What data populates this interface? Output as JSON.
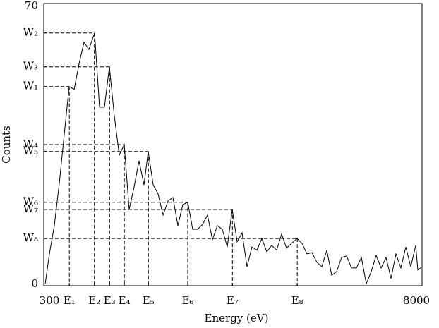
{
  "chart_data": {
    "type": "line",
    "xlabel": "Energy (eV)",
    "ylabel": "Counts",
    "xlim": [
      300,
      8000
    ],
    "ylim": [
      0,
      70
    ],
    "xticks": [
      300,
      {
        "value": 820,
        "label": "E₁"
      },
      {
        "value": 1330,
        "label": "E₂"
      },
      {
        "value": 1640,
        "label": "E₃"
      },
      {
        "value": 1940,
        "label": "E₄"
      },
      {
        "value": 2430,
        "label": "E₅"
      },
      {
        "value": 3230,
        "label": "E₆"
      },
      {
        "value": 4140,
        "label": "E₇"
      },
      {
        "value": 5460,
        "label": "E₈"
      },
      8000
    ],
    "yticks": [
      0,
      {
        "value": 49.4,
        "label": "W₁"
      },
      {
        "value": 62.7,
        "label": "W₂"
      },
      {
        "value": 54.3,
        "label": "W₃"
      },
      {
        "value": 35.0,
        "label": "W₄"
      },
      {
        "value": 33.3,
        "label": "W₅"
      },
      {
        "value": 20.7,
        "label": "W₆"
      },
      {
        "value": 18.9,
        "label": "W₇"
      },
      {
        "value": 11.7,
        "label": "W₈"
      },
      70
    ],
    "color": "#000000",
    "x": [
      330,
      415,
      515,
      616,
      717,
      817,
      918,
      1019,
      1119,
      1219,
      1334,
      1435,
      1535,
      1636,
      1737,
      1837,
      1938,
      2038,
      2139,
      2239,
      2340,
      2426,
      2527,
      2627,
      2728,
      2828,
      2929,
      3030,
      3130,
      3231,
      3331,
      3432,
      3532,
      3633,
      3733,
      3834,
      3935,
      4035,
      4136,
      4236,
      4337,
      4437,
      4538,
      4638,
      4739,
      4840,
      4940,
      5041,
      5141,
      5242,
      5342,
      5457,
      5558,
      5658,
      5759,
      5860,
      5960,
      6061,
      6161,
      6262,
      6362,
      6463,
      6564,
      6664,
      6765,
      6865,
      6966,
      7066,
      7167,
      7267,
      7368,
      7469,
      7569,
      7670,
      7770,
      7871,
      7914,
      8000
    ],
    "values": [
      0.5,
      7.9,
      14.9,
      25.4,
      37.6,
      49.4,
      48.7,
      55.1,
      60.4,
      58.6,
      62.7,
      44.3,
      44.3,
      54.3,
      42.0,
      32.4,
      35.0,
      18.9,
      24.5,
      31.0,
      25.0,
      33.3,
      25.0,
      22.8,
      17.5,
      21.0,
      21.9,
      14.9,
      20.1,
      20.7,
      14.0,
      14.0,
      15.2,
      17.5,
      11.4,
      14.9,
      14.0,
      9.6,
      18.9,
      10.9,
      13.1,
      4.7,
      9.6,
      8.8,
      11.7,
      8.4,
      10.0,
      8.8,
      12.8,
      9.3,
      10.5,
      11.7,
      10.5,
      7.9,
      8.2,
      5.8,
      4.7,
      8.8,
      2.6,
      3.5,
      7.0,
      7.4,
      4.4,
      4.4,
      7.0,
      0.5,
      3.5,
      7.5,
      4.4,
      7.0,
      1.8,
      7.9,
      4.4,
      9.6,
      4.7,
      10.0,
      3.9,
      4.7
    ]
  }
}
